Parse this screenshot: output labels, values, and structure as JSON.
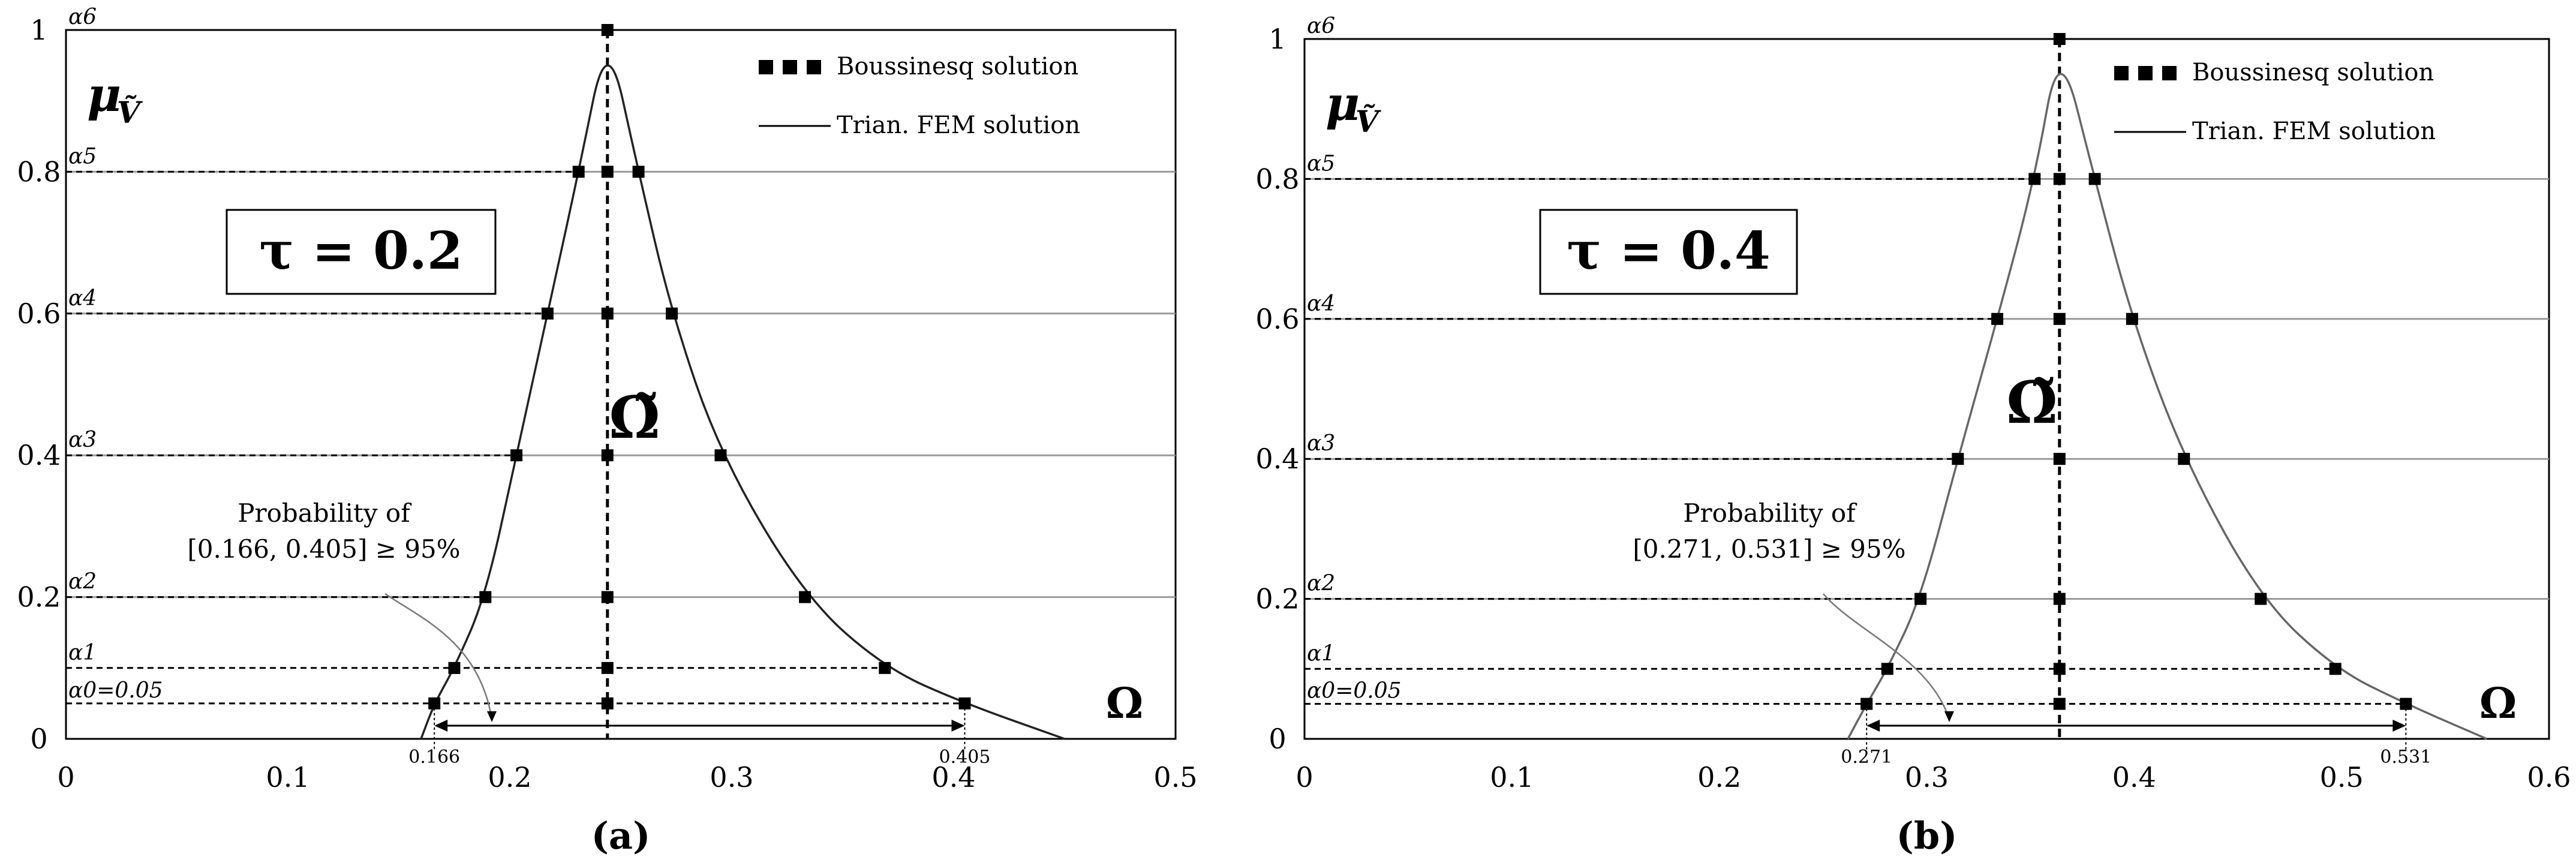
{
  "figure": {
    "panels": [
      {
        "id": "a",
        "panel_label": "(a)",
        "ylabel_glyph": "μ",
        "ylabel_sub": "Ṽ",
        "tau_text": "τ = 0.2",
        "omega_label": "Ω",
        "omega_tilde": "Ω̃",
        "legend": {
          "boussinesq": "Boussinesq solution",
          "fem": "Trian. FEM solution"
        },
        "probability_line1": "Probability of",
        "probability_line2": "[0.166, 0.405] ≥ 95%",
        "alpha_labels": [
          "α0=0.05",
          "α1",
          "α2",
          "α3",
          "α4",
          "α5",
          "α6"
        ],
        "arrow_left_label": "0.166",
        "arrow_right_label": "0.405"
      },
      {
        "id": "b",
        "panel_label": "(b)",
        "ylabel_glyph": "μ",
        "ylabel_sub": "Ṽ",
        "tau_text": "τ = 0.4",
        "omega_label": "Ω",
        "omega_tilde": "Ω̃",
        "legend": {
          "boussinesq": "Boussinesq solution",
          "fem": "Trian. FEM solution"
        },
        "probability_line1": "Probability of",
        "probability_line2": "[0.271, 0.531] ≥ 95%",
        "alpha_labels": [
          "α0=0.05",
          "α1",
          "α2",
          "α3",
          "α4",
          "α5",
          "α6"
        ],
        "arrow_left_label": "0.271",
        "arrow_right_label": "0.531"
      }
    ]
  },
  "chart_data": [
    {
      "type": "line",
      "title": "",
      "xlabel": "Ω",
      "ylabel": "μṼ",
      "xlim": [
        0,
        0.5
      ],
      "ylim": [
        0,
        1
      ],
      "xticks": [
        0,
        0.1,
        0.2,
        0.3,
        0.4,
        0.5
      ],
      "yticks": [
        0,
        0.2,
        0.4,
        0.6,
        0.8,
        1
      ],
      "alpha_levels": [
        0.05,
        0.1,
        0.2,
        0.4,
        0.6,
        0.8,
        1.0
      ],
      "series": [
        {
          "name": "Boussinesq solution",
          "left": [
            0.166,
            0.175,
            0.189,
            0.203,
            0.217,
            0.231,
            0.244
          ],
          "center": 0.244,
          "right": [
            0.405,
            0.369,
            0.333,
            0.295,
            0.273,
            0.258,
            0.244
          ]
        },
        {
          "name": "Trian. FEM solution",
          "x": [
            0.16,
            0.166,
            0.175,
            0.189,
            0.203,
            0.217,
            0.231,
            0.244,
            0.258,
            0.273,
            0.295,
            0.333,
            0.369,
            0.405,
            0.45
          ],
          "y": [
            0.0,
            0.05,
            0.1,
            0.2,
            0.4,
            0.6,
            0.8,
            1.0,
            0.8,
            0.6,
            0.4,
            0.2,
            0.1,
            0.05,
            0.0
          ]
        }
      ],
      "interval": [
        0.166,
        0.405
      ]
    },
    {
      "type": "line",
      "title": "",
      "xlabel": "Ω",
      "ylabel": "μṼ",
      "xlim": [
        0,
        0.6
      ],
      "ylim": [
        0,
        1
      ],
      "xticks": [
        0,
        0.1,
        0.2,
        0.3,
        0.4,
        0.5,
        0.6
      ],
      "yticks": [
        0,
        0.2,
        0.4,
        0.6,
        0.8,
        1
      ],
      "alpha_levels": [
        0.05,
        0.1,
        0.2,
        0.4,
        0.6,
        0.8,
        1.0
      ],
      "series": [
        {
          "name": "Boussinesq solution",
          "left": [
            0.271,
            0.281,
            0.297,
            0.315,
            0.334,
            0.352,
            0.364
          ],
          "center": 0.364,
          "right": [
            0.531,
            0.497,
            0.461,
            0.424,
            0.399,
            0.381,
            0.364
          ]
        },
        {
          "name": "Trian. FEM solution",
          "x": [
            0.262,
            0.271,
            0.281,
            0.297,
            0.315,
            0.334,
            0.352,
            0.364,
            0.381,
            0.399,
            0.424,
            0.461,
            0.497,
            0.531,
            0.57
          ],
          "y": [
            0.0,
            0.05,
            0.1,
            0.2,
            0.4,
            0.6,
            0.8,
            1.0,
            0.8,
            0.6,
            0.4,
            0.2,
            0.1,
            0.05,
            0.0
          ]
        }
      ],
      "interval": [
        0.271,
        0.531
      ]
    }
  ]
}
